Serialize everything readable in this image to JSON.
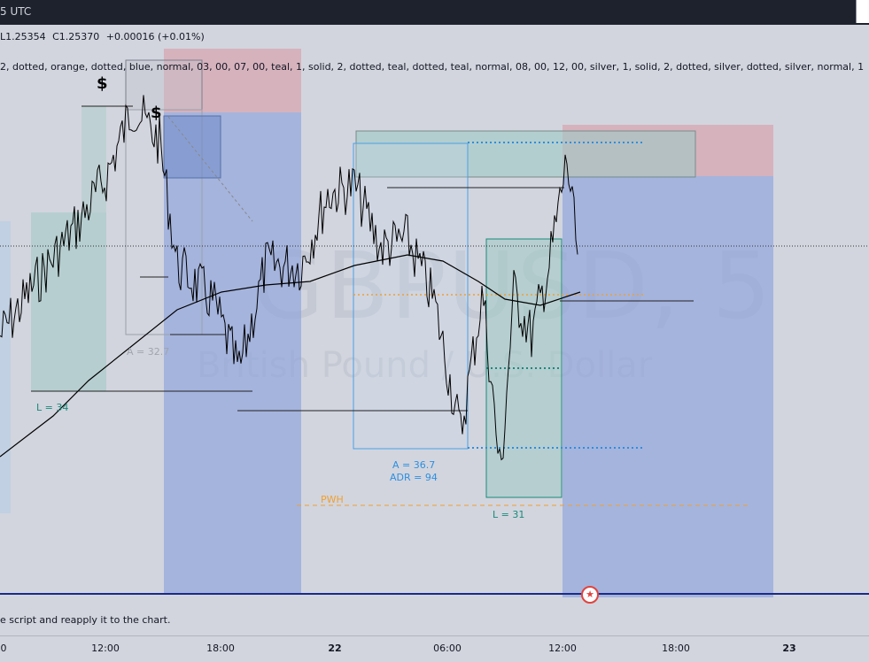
{
  "header": {
    "title_fragment": "5 UTC",
    "ohlc": {
      "low": "L1.25354",
      "close": "C1.25370",
      "change": "+0.00016 (+0.01%)"
    },
    "params_text": "2, dotted, orange, dotted, blue, normal, 03, 00, 07, 00, teal, 1, solid, 2, dotted, teal, dotted, teal, normal, 08, 00, 12, 00, silver, 1, solid, 2, dotted, silver, dotted, silver, normal, 1"
  },
  "watermark": {
    "symbol": "GBPUSD, 5",
    "description": "British Pound / U.S. Dollar"
  },
  "message": "e script and reapply it to the chart.",
  "chart_data": {
    "type": "line",
    "symbol": "GBPUSD",
    "x_ticks": [
      {
        "label": "0",
        "bold": false
      },
      {
        "label": "12:00",
        "bold": false
      },
      {
        "label": "18:00",
        "bold": false
      },
      {
        "label": "22",
        "bold": true
      },
      {
        "label": "06:00",
        "bold": false
      },
      {
        "label": "12:00",
        "bold": false
      },
      {
        "label": "18:00",
        "bold": false
      },
      {
        "label": "23",
        "bold": true
      }
    ],
    "annotations": [
      {
        "id": "l34",
        "text": "L = 34"
      },
      {
        "id": "a327",
        "text": "A = 32.7"
      },
      {
        "id": "a367",
        "text": "A = 36.7"
      },
      {
        "id": "adr",
        "text": "ADR = 94"
      },
      {
        "id": "pwh",
        "text": "PWH"
      },
      {
        "id": "l31",
        "text": "L = 31"
      }
    ],
    "markers": [
      {
        "id": "dollar1",
        "text": "$"
      },
      {
        "id": "dollar2",
        "text": "$"
      }
    ],
    "colors": {
      "candles": "#000000",
      "moving_average": "#000000",
      "teal_box": "#9fc9c4",
      "blue_box": "#8ea3dc",
      "pink_box": "#d7a9b4",
      "orange": "#f0a030",
      "dotted_blue": "#2d8fe0",
      "session_blue": "#4aa0e6"
    }
  }
}
